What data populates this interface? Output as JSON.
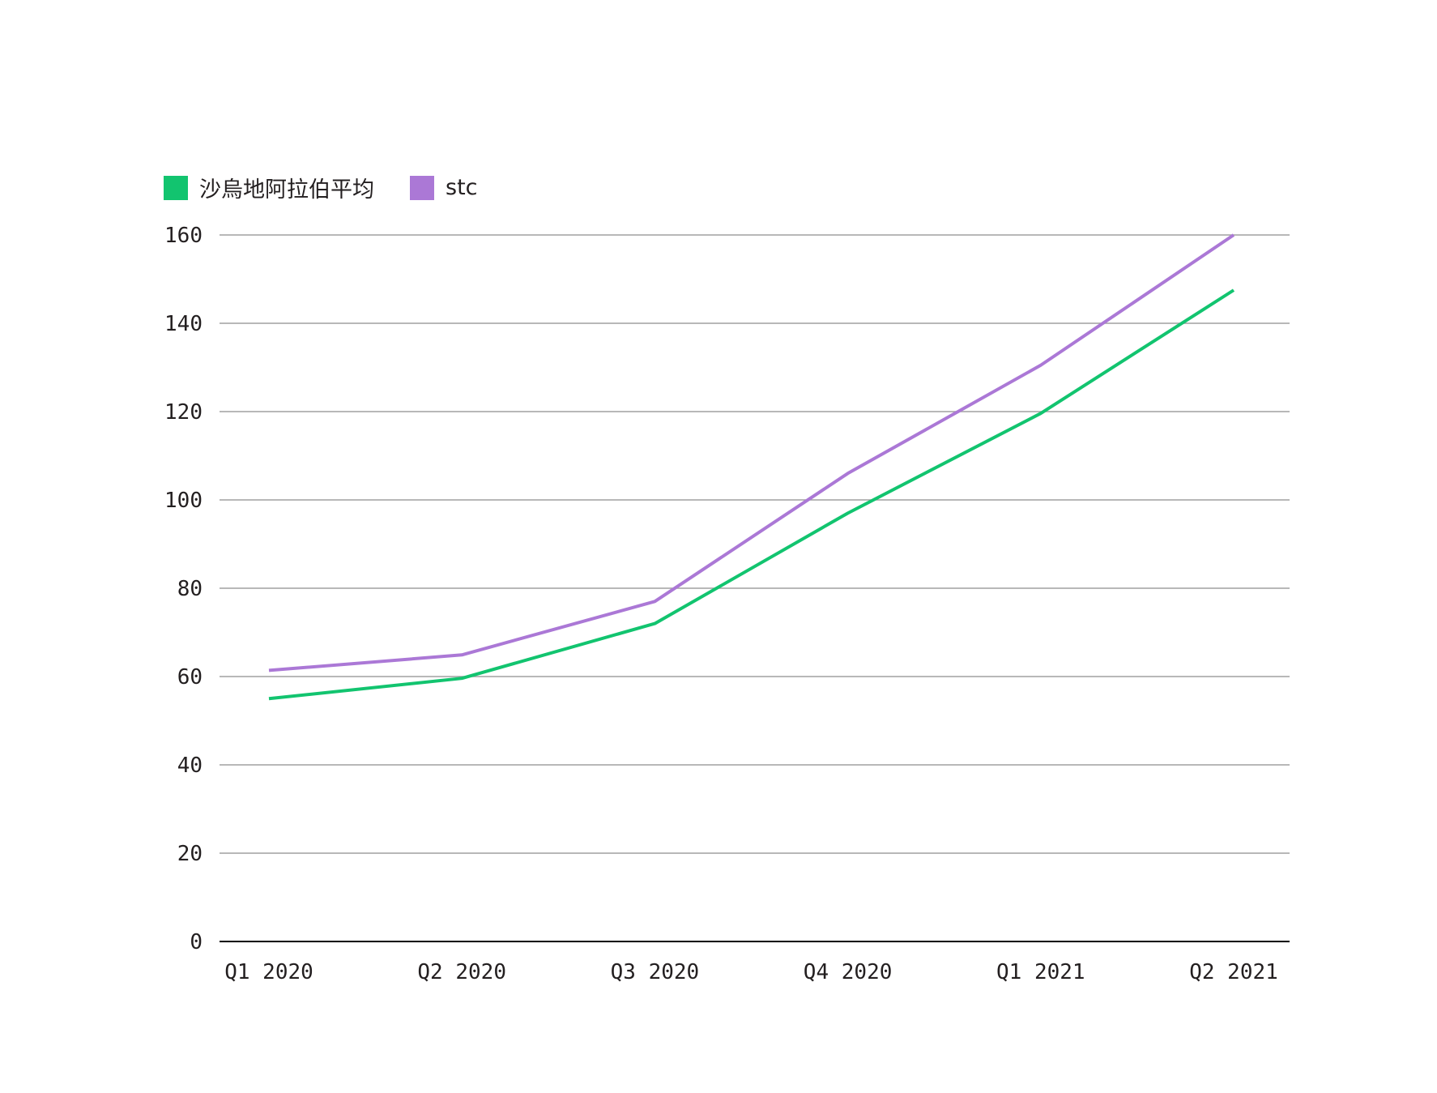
{
  "chart_data": {
    "type": "line",
    "categories": [
      "Q1 2020",
      "Q2 2020",
      "Q3 2020",
      "Q4 2020",
      "Q1 2021",
      "Q2 2021"
    ],
    "series": [
      {
        "name": "沙烏地阿拉伯平均",
        "color": "#12c46f",
        "values": [
          55,
          59.6,
          72,
          97,
          119.6,
          147.5
        ]
      },
      {
        "name": "stc",
        "color": "#ab78d6",
        "values": [
          61.4,
          64.9,
          77,
          106,
          130.5,
          160
        ]
      }
    ],
    "yticks": [
      0,
      20,
      40,
      60,
      80,
      100,
      120,
      140,
      160
    ],
    "ylim": [
      0,
      160
    ],
    "grid": true,
    "legend": "top-left"
  }
}
